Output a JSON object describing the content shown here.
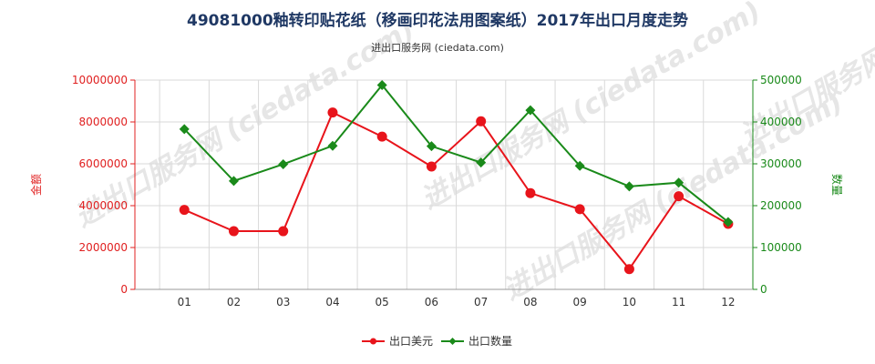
{
  "chart_data": {
    "type": "line",
    "title": "49081000釉转印贴花纸（移画印花法用图案纸）2017年出口月度走势",
    "subtitle": "进出口服务网 (ciedata.com)",
    "watermark": "进出口服务网 (ciedata.com)",
    "categories": [
      "01",
      "02",
      "03",
      "04",
      "05",
      "06",
      "07",
      "08",
      "09",
      "10",
      "11",
      "12"
    ],
    "y_left": {
      "label": "金额",
      "ylim": [
        0,
        10000000
      ],
      "ticks": [
        "0",
        "2000000",
        "4000000",
        "6000000",
        "8000000",
        "10000000"
      ],
      "tick_values": [
        0,
        2000000,
        4000000,
        6000000,
        8000000,
        10000000
      ]
    },
    "y_right": {
      "label": "数量",
      "ylim": [
        0,
        500000
      ],
      "ticks": [
        "0",
        "100000",
        "200000",
        "300000",
        "400000",
        "500000"
      ],
      "tick_values": [
        0,
        100000,
        200000,
        300000,
        400000,
        500000
      ]
    },
    "series": [
      {
        "name": "出口美元",
        "axis": "left",
        "color": "#e8141b",
        "marker": "circle",
        "values": [
          3800000,
          2780000,
          2780000,
          8450000,
          7300000,
          5870000,
          8030000,
          4600000,
          3830000,
          970000,
          4450000,
          3130000
        ]
      },
      {
        "name": "出口数量",
        "axis": "right",
        "color": "#1a8a1a",
        "marker": "diamond",
        "values": [
          383000,
          259000,
          299000,
          343000,
          488000,
          342000,
          303000,
          428000,
          295000,
          246000,
          255000,
          161000
        ]
      }
    ],
    "grid": true,
    "legend": "bottom-center"
  }
}
